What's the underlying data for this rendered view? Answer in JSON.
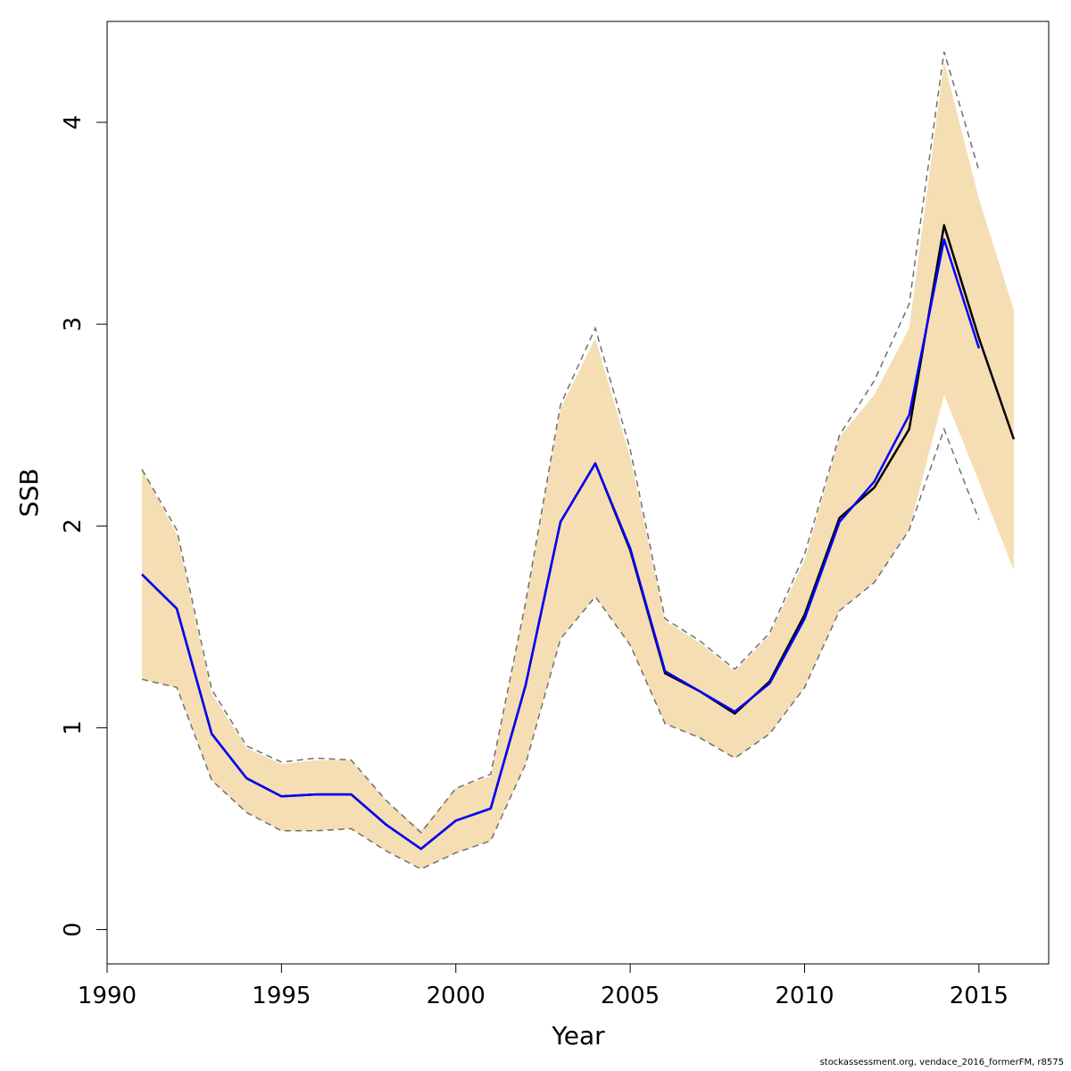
{
  "chart_data": {
    "type": "line",
    "title": "",
    "xlabel": "Year",
    "ylabel": "SSB",
    "xlim": [
      1990,
      2017
    ],
    "ylim": [
      -0.17,
      4.5
    ],
    "xticks": [
      1990,
      1995,
      2000,
      2005,
      2010,
      2015
    ],
    "yticks": [
      0,
      1,
      2,
      3,
      4
    ],
    "grid": false,
    "legend": "none",
    "colors": {
      "band": "#f5deb3",
      "current": "#000000",
      "previous": "#0000ff",
      "previous_ci": "#707070"
    },
    "band": {
      "x": [
        1991,
        1992,
        1993,
        1994,
        1995,
        1996,
        1997,
        1998,
        1999,
        2000,
        2001,
        2002,
        2003,
        2004,
        2005,
        2006,
        2007,
        2008,
        2009,
        2010,
        2011,
        2012,
        2013,
        2014,
        2015,
        2016
      ],
      "lower": [
        1.24,
        1.2,
        0.74,
        0.58,
        0.49,
        0.49,
        0.5,
        0.39,
        0.3,
        0.38,
        0.44,
        0.82,
        1.44,
        1.65,
        1.41,
        1.02,
        0.95,
        0.85,
        0.97,
        1.2,
        1.58,
        1.72,
        1.98,
        2.65,
        2.22,
        1.78
      ],
      "upper": [
        2.28,
        1.96,
        1.17,
        0.9,
        0.82,
        0.84,
        0.84,
        0.64,
        0.49,
        0.7,
        0.76,
        1.62,
        2.58,
        2.93,
        2.34,
        1.53,
        1.42,
        1.28,
        1.46,
        1.83,
        2.44,
        2.65,
        2.98,
        4.3,
        3.62,
        3.07
      ]
    },
    "series": [
      {
        "x": [
          1991,
          1992,
          1993,
          1994,
          1995,
          1996,
          1997,
          1998,
          1999,
          2000,
          2001,
          2002,
          2003,
          2004,
          2005,
          2006,
          2007,
          2008,
          2009,
          2010,
          2011,
          2012,
          2013,
          2014,
          2015,
          2016
        ],
        "values": [
          1.76,
          1.59,
          0.97,
          0.75,
          0.66,
          0.67,
          0.67,
          0.52,
          0.4,
          0.54,
          0.6,
          1.21,
          2.02,
          2.31,
          1.88,
          1.27,
          1.18,
          1.07,
          1.23,
          1.56,
          2.04,
          2.19,
          2.48,
          3.49,
          2.93,
          2.43
        ]
      },
      {
        "x": [
          1991,
          1992,
          1993,
          1994,
          1995,
          1996,
          1997,
          1998,
          1999,
          2000,
          2001,
          2002,
          2003,
          2004,
          2005,
          2006,
          2007,
          2008,
          2009,
          2010,
          2011,
          2012,
          2013,
          2014,
          2015
        ],
        "values": [
          1.76,
          1.59,
          0.97,
          0.75,
          0.66,
          0.67,
          0.67,
          0.52,
          0.4,
          0.54,
          0.6,
          1.21,
          2.02,
          2.31,
          1.89,
          1.28,
          1.18,
          1.08,
          1.22,
          1.54,
          2.02,
          2.22,
          2.55,
          3.42,
          2.88
        ]
      }
    ],
    "previous_band": {
      "x": [
        1991,
        1992,
        1993,
        1994,
        1995,
        1996,
        1997,
        1998,
        1999,
        2000,
        2001,
        2002,
        2003,
        2004,
        2005,
        2006,
        2007,
        2008,
        2009,
        2010,
        2011,
        2012,
        2013,
        2014,
        2015
      ],
      "lower": [
        1.24,
        1.2,
        0.74,
        0.58,
        0.49,
        0.49,
        0.5,
        0.39,
        0.3,
        0.38,
        0.44,
        0.82,
        1.44,
        1.65,
        1.41,
        1.02,
        0.95,
        0.85,
        0.97,
        1.2,
        1.58,
        1.72,
        1.98,
        2.48,
        2.03
      ],
      "upper": [
        2.28,
        1.98,
        1.19,
        0.91,
        0.83,
        0.85,
        0.84,
        0.64,
        0.48,
        0.7,
        0.77,
        1.62,
        2.6,
        2.98,
        2.38,
        1.54,
        1.43,
        1.29,
        1.47,
        1.86,
        2.45,
        2.72,
        3.1,
        4.35,
        3.76
      ]
    }
  },
  "footer": "stockassessment.org, vendace_2016_formerFM, r8575"
}
